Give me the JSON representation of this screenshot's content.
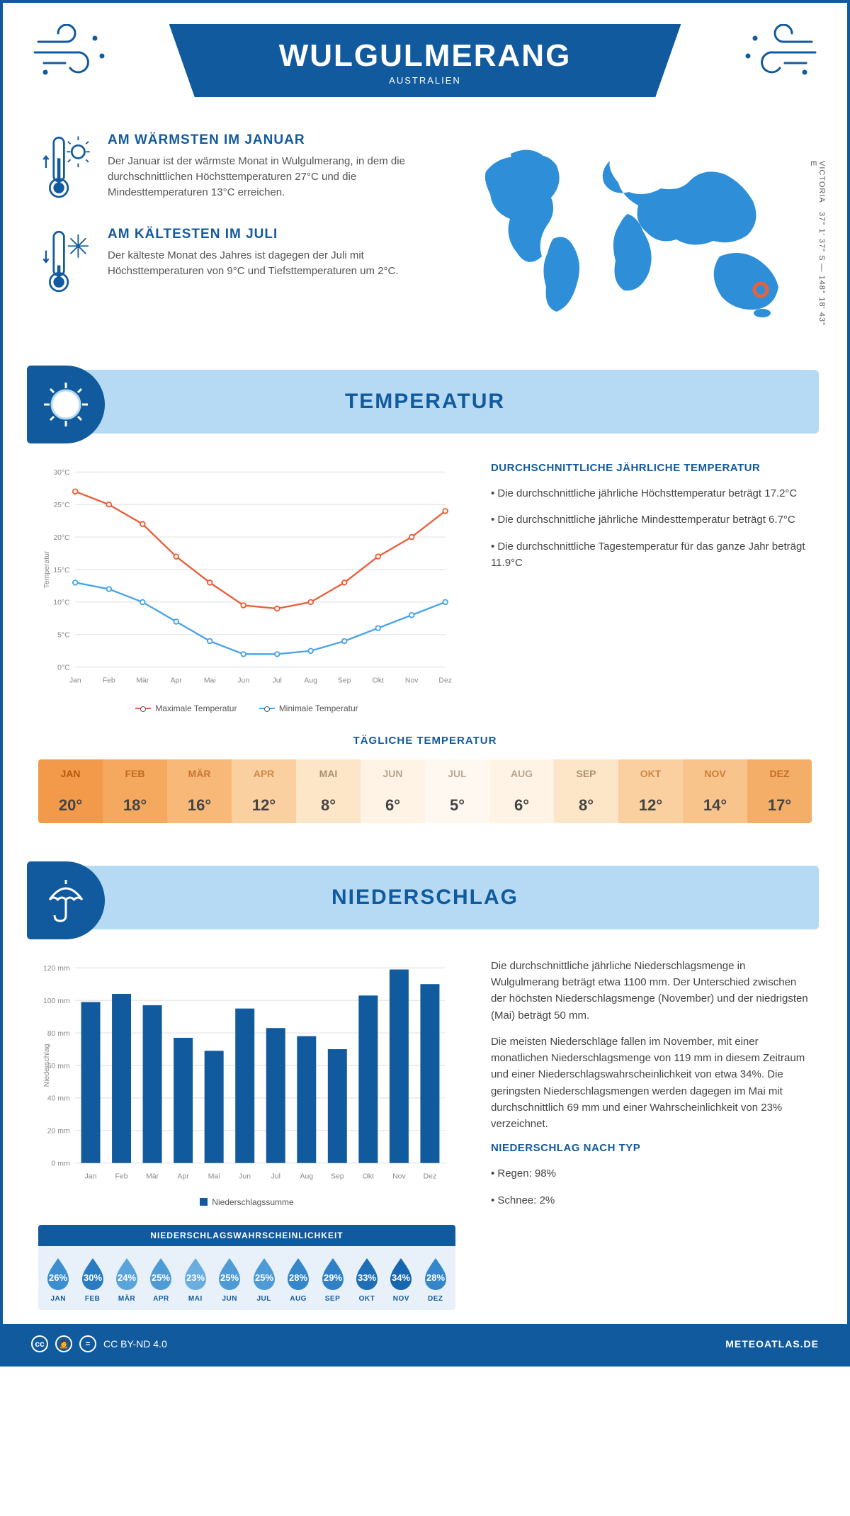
{
  "header": {
    "title": "WULGULMERANG",
    "subtitle": "AUSTRALIEN"
  },
  "coords": {
    "region": "VICTORIA",
    "lat": "37° 1' 37\" S",
    "lon": "148° 18' 43\" E"
  },
  "warmest": {
    "title": "AM WÄRMSTEN IM JANUAR",
    "text": "Der Januar ist der wärmste Monat in Wulgulmerang, in dem die durchschnittlichen Höchsttemperaturen 27°C und die Mindesttemperaturen 13°C erreichen."
  },
  "coldest": {
    "title": "AM KÄLTESTEN IM JULI",
    "text": "Der kälteste Monat des Jahres ist dagegen der Juli mit Höchsttemperaturen von 9°C und Tiefsttemperaturen um 2°C."
  },
  "temp_section": {
    "heading": "TEMPERATUR",
    "chart": {
      "type": "line",
      "months": [
        "Jan",
        "Feb",
        "Mär",
        "Apr",
        "Mai",
        "Jun",
        "Jul",
        "Aug",
        "Sep",
        "Okt",
        "Nov",
        "Dez"
      ],
      "max_series": [
        27,
        25,
        22,
        17,
        13,
        9.5,
        9,
        10,
        13,
        17,
        20,
        24
      ],
      "min_series": [
        13,
        12,
        10,
        7,
        4,
        2,
        2,
        2.5,
        4,
        6,
        8,
        10
      ],
      "max_color": "#e8613c",
      "min_color": "#4aa5e6",
      "ylim": [
        0,
        30
      ],
      "ytick_step": 5,
      "ylabel": "Temperatur",
      "grid_color": "#dddddd",
      "legend_max": "Maximale Temperatur",
      "legend_min": "Minimale Temperatur"
    },
    "summary_title": "DURCHSCHNITTLICHE JÄHRLICHE TEMPERATUR",
    "bullets": [
      "Die durchschnittliche jährliche Höchsttemperatur beträgt 17.2°C",
      "Die durchschnittliche jährliche Mindesttemperatur beträgt 6.7°C",
      "Die durchschnittliche Tagestemperatur für das ganze Jahr beträgt 11.9°C"
    ]
  },
  "daily_temp": {
    "title": "TÄGLICHE TEMPERATUR",
    "months": [
      "JAN",
      "FEB",
      "MÄR",
      "APR",
      "MAI",
      "JUN",
      "JUL",
      "AUG",
      "SEP",
      "OKT",
      "NOV",
      "DEZ"
    ],
    "values": [
      "20°",
      "18°",
      "16°",
      "12°",
      "8°",
      "6°",
      "5°",
      "6°",
      "8°",
      "12°",
      "14°",
      "17°"
    ],
    "colors": [
      "#f2994a",
      "#f5a95e",
      "#f7b878",
      "#fbd0a0",
      "#fde5c8",
      "#fff3e6",
      "#fff8f0",
      "#fff3e6",
      "#fde5c8",
      "#fbd0a0",
      "#f9c48c",
      "#f5ae68"
    ],
    "text_colors": [
      "#b55a10",
      "#c0681f",
      "#c97631",
      "#d28646",
      "#ad906f",
      "#b8a48e",
      "#bca995",
      "#b8a48e",
      "#ad906f",
      "#d28646",
      "#cd7d39",
      "#c36c24"
    ]
  },
  "precip_section": {
    "heading": "NIEDERSCHLAG",
    "chart": {
      "type": "bar",
      "months": [
        "Jan",
        "Feb",
        "Mär",
        "Apr",
        "Mai",
        "Jun",
        "Jul",
        "Aug",
        "Sep",
        "Okt",
        "Nov",
        "Dez"
      ],
      "values": [
        99,
        104,
        97,
        77,
        69,
        95,
        83,
        78,
        70,
        103,
        119,
        110
      ],
      "bar_color": "#125a9e",
      "ylim": [
        0,
        120
      ],
      "ytick_step": 20,
      "ylabel": "Niederschlag",
      "legend": "Niederschlagssumme"
    },
    "text1": "Die durchschnittliche jährliche Niederschlagsmenge in Wulgulmerang beträgt etwa 1100 mm. Der Unterschied zwischen der höchsten Niederschlagsmenge (November) und der niedrigsten (Mai) beträgt 50 mm.",
    "text2": "Die meisten Niederschläge fallen im November, mit einer monatlichen Niederschlagsmenge von 119 mm in diesem Zeitraum und einer Niederschlagswahrscheinlichkeit von etwa 34%. Die geringsten Niederschlagsmengen werden dagegen im Mai mit durchschnittlich 69 mm und einer Wahrscheinlichkeit von 23% verzeichnet.",
    "type_title": "NIEDERSCHLAG NACH TYP",
    "type_bullets": [
      "Regen: 98%",
      "Schnee: 2%"
    ],
    "prob_title": "NIEDERSCHLAGSWAHRSCHEINLICHKEIT",
    "prob_months": [
      "JAN",
      "FEB",
      "MÄR",
      "APR",
      "MAI",
      "JUN",
      "JUL",
      "AUG",
      "SEP",
      "OKT",
      "NOV",
      "DEZ"
    ],
    "prob_values": [
      "26%",
      "30%",
      "24%",
      "25%",
      "23%",
      "25%",
      "25%",
      "28%",
      "29%",
      "33%",
      "34%",
      "28%"
    ],
    "drop_colors": [
      "#3b8ed0",
      "#2a7bc2",
      "#5ba3db",
      "#4e9bd6",
      "#6aade0",
      "#4e9bd6",
      "#4e9bd6",
      "#3586cb",
      "#2f80c7",
      "#1f6fb8",
      "#1866b0",
      "#3586cb"
    ]
  },
  "footer": {
    "license": "CC BY-ND 4.0",
    "site": "METEOATLAS.DE"
  },
  "colors": {
    "primary": "#125a9e",
    "light_blue": "#b7daf4",
    "accent_orange": "#e8613c",
    "map_blue": "#2e8fd8"
  }
}
